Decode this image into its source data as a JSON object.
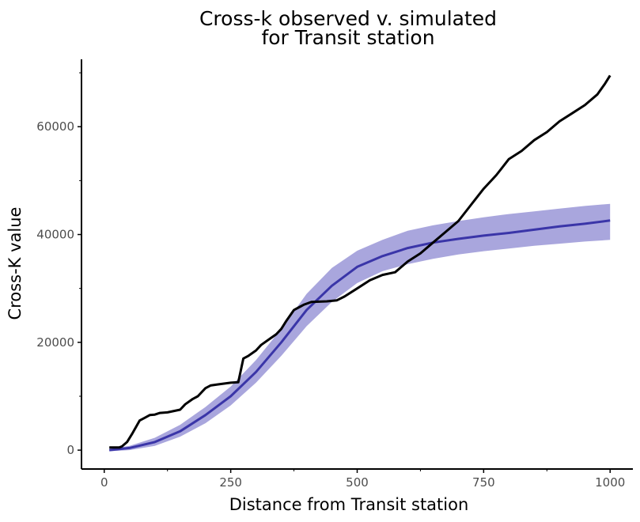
{
  "chart_data": {
    "type": "line",
    "title": [
      "Cross-k observed v. simulated",
      "for Transit station"
    ],
    "xlabel": "Distance from Transit station",
    "ylabel": "Cross-K value",
    "xlim": [
      -45,
      1045
    ],
    "ylim": [
      -3500,
      72500
    ],
    "xticks": [
      0,
      250,
      500,
      750,
      1000
    ],
    "yticks": [
      0,
      20000,
      40000,
      60000
    ],
    "grid": false,
    "legend": "none",
    "colors": {
      "observed": "#000000",
      "simulated_mean": "#3a35a8",
      "envelope": "#a9a6dd"
    },
    "series": [
      {
        "role": "observed",
        "x": [
          10,
          30,
          35,
          45,
          55,
          70,
          80,
          90,
          100,
          110,
          125,
          150,
          160,
          175,
          185,
          190,
          200,
          210,
          225,
          250,
          265,
          275,
          285,
          300,
          310,
          325,
          340,
          350,
          360,
          375,
          385,
          395,
          410,
          440,
          460,
          475,
          500,
          525,
          550,
          575,
          600,
          625,
          650,
          675,
          700,
          725,
          750,
          775,
          800,
          825,
          850,
          875,
          900,
          925,
          950,
          975,
          990,
          1000
        ],
        "y": [
          500,
          500,
          700,
          1500,
          3000,
          5500,
          6000,
          6500,
          6600,
          6900,
          7000,
          7500,
          8500,
          9500,
          10000,
          10500,
          11500,
          12000,
          12200,
          12500,
          12600,
          17000,
          17500,
          18500,
          19500,
          20500,
          21500,
          22500,
          24000,
          26000,
          26500,
          27000,
          27500,
          27600,
          27800,
          28500,
          30000,
          31500,
          32500,
          33000,
          35000,
          36500,
          38500,
          40500,
          42500,
          45500,
          48500,
          51000,
          54000,
          55500,
          57500,
          59000,
          61000,
          62500,
          64000,
          66000,
          68000,
          69500
        ]
      },
      {
        "role": "simulated_mean",
        "x": [
          10,
          50,
          100,
          150,
          200,
          250,
          300,
          350,
          400,
          450,
          500,
          550,
          600,
          650,
          700,
          750,
          800,
          850,
          900,
          950,
          1000
        ],
        "y": [
          0,
          400,
          1500,
          3500,
          6500,
          10000,
          14500,
          20000,
          26000,
          30500,
          34000,
          36000,
          37500,
          38500,
          39200,
          39800,
          40300,
          40900,
          41500,
          42000,
          42600
        ],
        "band_low": [
          -200,
          0,
          800,
          2500,
          5000,
          8300,
          12500,
          17500,
          23000,
          27500,
          31000,
          33200,
          34500,
          35500,
          36300,
          36900,
          37400,
          37900,
          38300,
          38700,
          39000
        ],
        "band_high": [
          200,
          800,
          2300,
          4700,
          8000,
          11800,
          16700,
          22500,
          29000,
          33800,
          37000,
          39000,
          40700,
          41700,
          42500,
          43200,
          43800,
          44300,
          44800,
          45300,
          45700
        ]
      }
    ]
  }
}
